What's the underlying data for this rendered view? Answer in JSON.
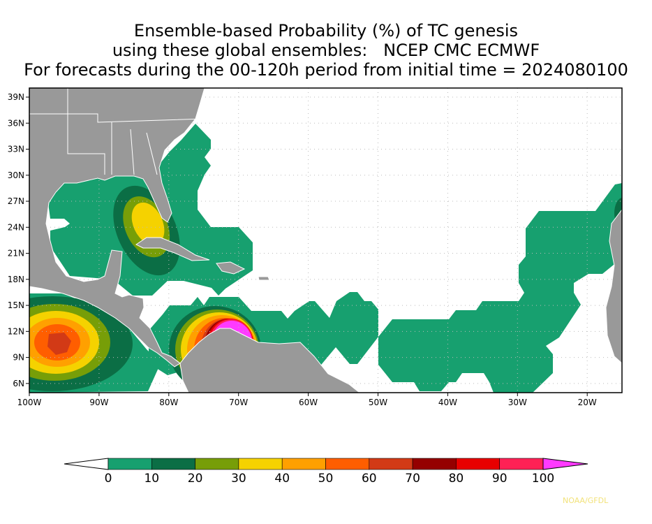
{
  "title": {
    "line1": "Ensemble-based Probability (%) of TC genesis",
    "line2": "using these global ensembles:   NCEP CMC ECMWF",
    "line3": "For forecasts during the 00-120h period from initial time = 2024080100"
  },
  "axes": {
    "lat_ticks": [
      "39N",
      "36N",
      "33N",
      "30N",
      "27N",
      "24N",
      "21N",
      "18N",
      "15N",
      "12N",
      "9N",
      "6N"
    ],
    "lat_values": [
      39,
      36,
      33,
      30,
      27,
      24,
      21,
      18,
      15,
      12,
      9,
      6
    ],
    "lon_ticks": [
      "100W",
      "90W",
      "80W",
      "70W",
      "60W",
      "50W",
      "40W",
      "30W",
      "20W"
    ],
    "lon_values": [
      -100,
      -90,
      -80,
      -70,
      -60,
      -50,
      -40,
      -30,
      -20
    ],
    "lon_range": [
      -100,
      -15
    ],
    "lat_range": [
      5,
      40
    ]
  },
  "colorbar": {
    "labels": [
      "0",
      "10",
      "20",
      "30",
      "40",
      "50",
      "60",
      "70",
      "80",
      "90",
      "100"
    ],
    "colors": [
      "#17a06f",
      "#0b6e45",
      "#779e08",
      "#f5d200",
      "#ffa000",
      "#ff5e00",
      "#d23a16",
      "#950000",
      "#e80000",
      "#ff2155",
      "#ff3aff"
    ],
    "under_color": "#ffffff",
    "land_color": "#999999"
  },
  "credit": "NOAA/GFDL"
}
